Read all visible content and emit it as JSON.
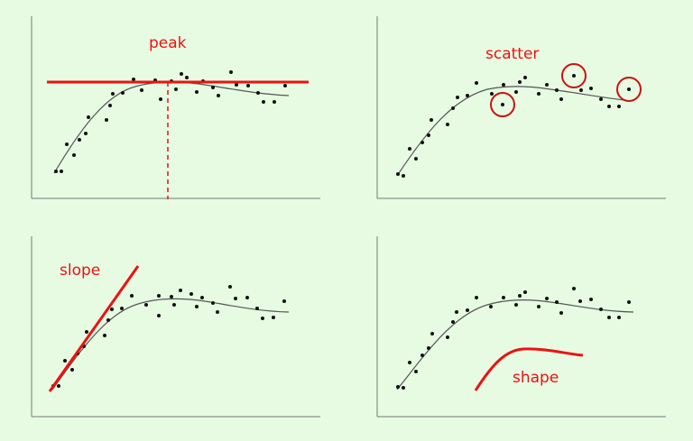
{
  "colors": {
    "background": "#e6fbe2",
    "accent": "#ee1111",
    "curve": "#555555",
    "points": "#111111",
    "axis": "#777777"
  },
  "panels": [
    {
      "id": "peak",
      "label": "peak"
    },
    {
      "id": "scatter",
      "label": "scatter"
    },
    {
      "id": "slope",
      "label": "slope"
    },
    {
      "id": "shape",
      "label": "shape"
    }
  ]
}
